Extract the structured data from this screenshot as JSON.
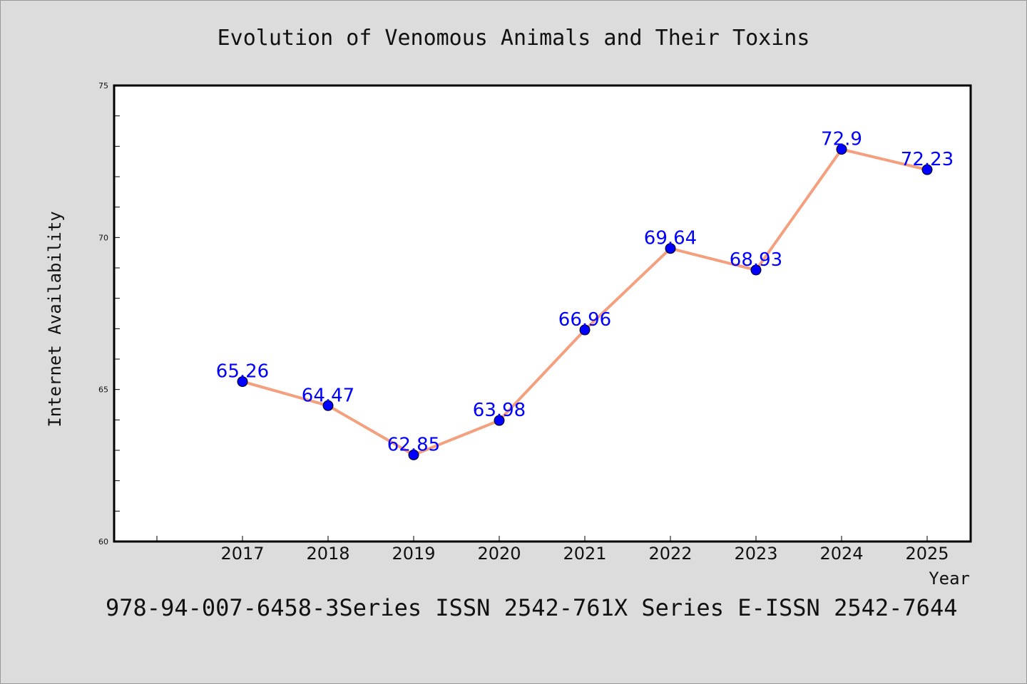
{
  "chart_data": {
    "type": "line",
    "title": "Evolution of Venomous Animals and Their Toxins",
    "xlabel": "Year",
    "ylabel": "Internet Availability",
    "categories": [
      "2017",
      "2018",
      "2019",
      "2020",
      "2021",
      "2022",
      "2023",
      "2024",
      "2025"
    ],
    "series": [
      {
        "values": [
          65.26,
          64.47,
          62.85,
          63.98,
          66.96,
          69.64,
          68.93,
          72.9,
          72.23
        ],
        "data_labels": [
          "65.26",
          "64.47",
          "62.85",
          "63.98",
          "66.96",
          "69.64",
          "68.93",
          "72.9",
          "72.23"
        ],
        "line_color": "#f4a07f",
        "marker_color": "#0000ff"
      }
    ],
    "ylim": [
      60,
      75
    ],
    "yticks": [
      "60",
      "65",
      "70",
      "75"
    ],
    "grid": false,
    "legend": "none"
  },
  "footer": {
    "text": "978-94-007-6458-3Series ISSN 2542-761X Series E-ISSN 2542-7644"
  },
  "colors": {
    "background": "#dcdcdc",
    "plot_background": "#ffffff",
    "line": "#f4a07f",
    "marker": "#0000ff",
    "data_label": "#0000ff"
  }
}
